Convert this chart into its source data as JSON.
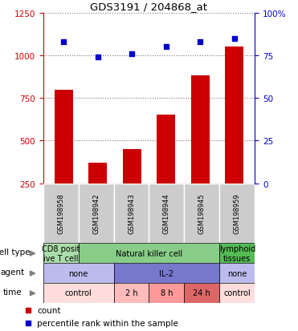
{
  "title": "GDS3191 / 204868_at",
  "samples": [
    "GSM198958",
    "GSM198942",
    "GSM198943",
    "GSM198944",
    "GSM198945",
    "GSM198959"
  ],
  "counts": [
    800,
    370,
    450,
    650,
    880,
    1050
  ],
  "percentile_ranks": [
    83,
    74,
    76,
    80,
    83,
    85
  ],
  "ylim_left": [
    250,
    1250
  ],
  "ylim_right": [
    0,
    100
  ],
  "yticks_left": [
    250,
    500,
    750,
    1000,
    1250
  ],
  "yticks_right": [
    0,
    25,
    50,
    75,
    100
  ],
  "ytick_right_labels": [
    "0",
    "25",
    "50",
    "75",
    "100%"
  ],
  "left_tick_color": "#cc0000",
  "right_tick_color": "#0000cc",
  "bar_color": "#cc0000",
  "dot_color": "#0000cc",
  "cell_type_row": {
    "label": "cell type",
    "segments": [
      {
        "text": "CD8 posit\nive T cell",
        "color": "#aaddaa",
        "span": [
          0,
          1
        ]
      },
      {
        "text": "Natural killer cell",
        "color": "#88cc88",
        "span": [
          1,
          5
        ]
      },
      {
        "text": "lymphoid\ntissues",
        "color": "#55bb55",
        "span": [
          5,
          6
        ]
      }
    ]
  },
  "agent_row": {
    "label": "agent",
    "segments": [
      {
        "text": "none",
        "color": "#bbbbee",
        "span": [
          0,
          2
        ]
      },
      {
        "text": "IL-2",
        "color": "#7777cc",
        "span": [
          2,
          5
        ]
      },
      {
        "text": "none",
        "color": "#bbbbee",
        "span": [
          5,
          6
        ]
      }
    ]
  },
  "time_row": {
    "label": "time",
    "segments": [
      {
        "text": "control",
        "color": "#ffdddd",
        "span": [
          0,
          2
        ]
      },
      {
        "text": "2 h",
        "color": "#ffbbbb",
        "span": [
          2,
          3
        ]
      },
      {
        "text": "8 h",
        "color": "#ff9999",
        "span": [
          3,
          4
        ]
      },
      {
        "text": "24 h",
        "color": "#dd6666",
        "span": [
          4,
          5
        ]
      },
      {
        "text": "control",
        "color": "#ffdddd",
        "span": [
          5,
          6
        ]
      }
    ]
  },
  "legend_count_color": "#cc0000",
  "legend_percentile_color": "#0000cc",
  "grid_color": "#777777",
  "sample_bg_color": "#cccccc",
  "bar_bottom": 250
}
